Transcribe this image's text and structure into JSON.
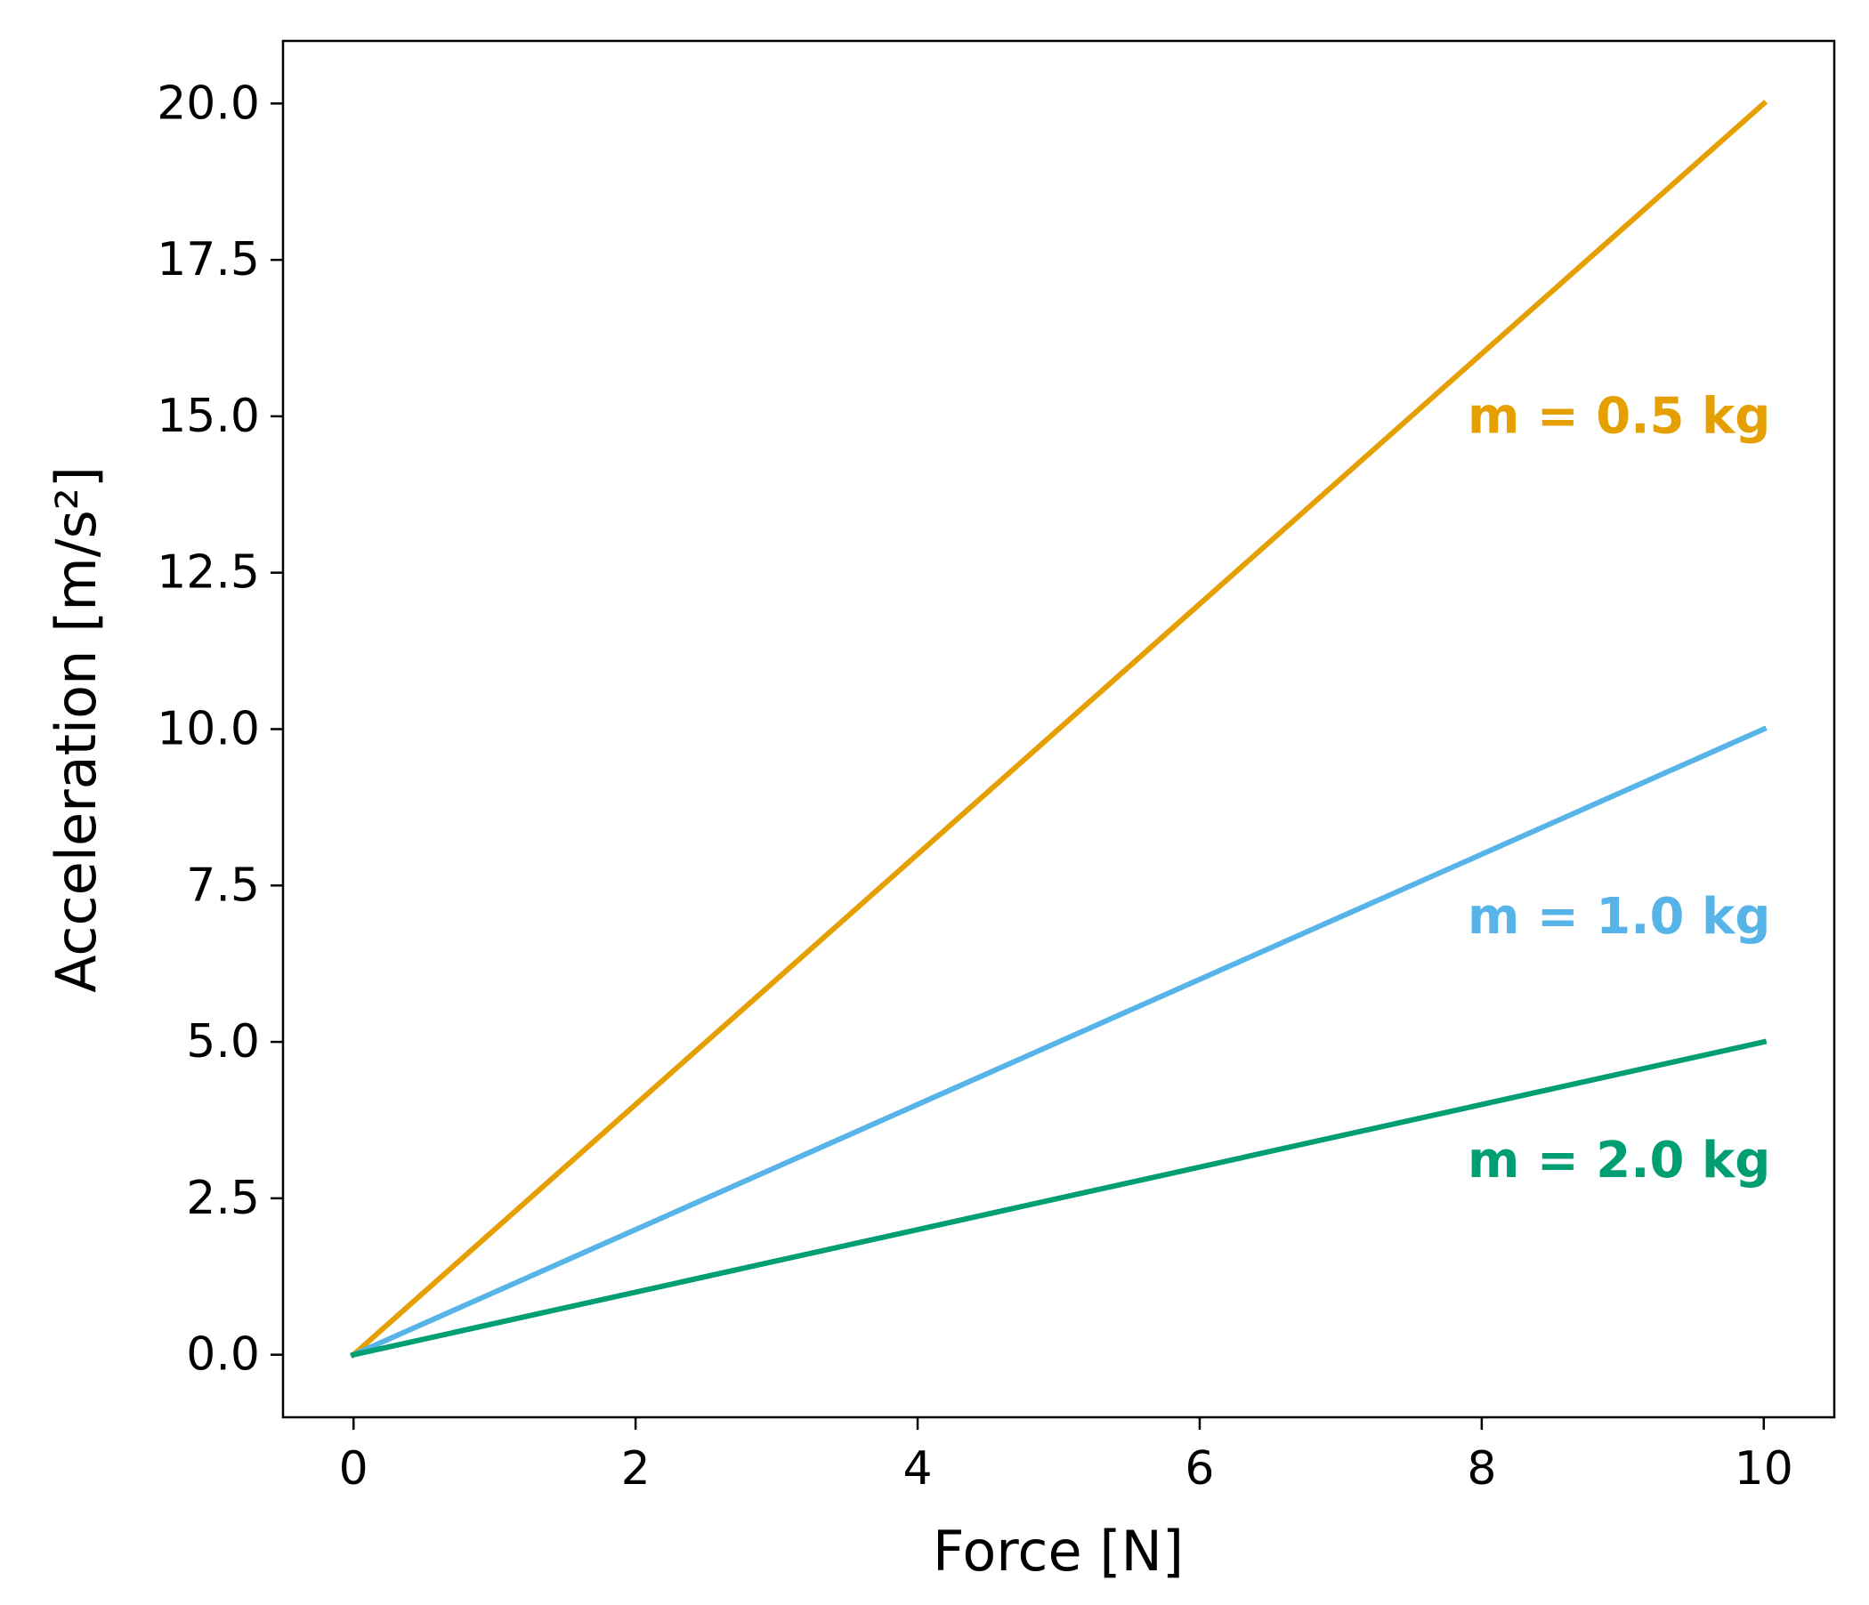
{
  "chart_data": {
    "type": "line",
    "title": "",
    "xlabel": "Force [N]",
    "ylabel": "Acceleration [m/s²]",
    "xlim": [
      -0.5,
      10.5
    ],
    "ylim": [
      -1.0,
      21.0
    ],
    "xticks": [
      0,
      2,
      4,
      6,
      8,
      10
    ],
    "xtick_labels": [
      "0",
      "2",
      "4",
      "6",
      "8",
      "10"
    ],
    "yticks": [
      0.0,
      2.5,
      5.0,
      7.5,
      10.0,
      12.5,
      15.0,
      17.5,
      20.0
    ],
    "ytick_labels": [
      "0.0",
      "2.5",
      "5.0",
      "7.5",
      "10.0",
      "12.5",
      "15.0",
      "17.5",
      "20.0"
    ],
    "grid": false,
    "legend": "none",
    "series": [
      {
        "name": "m = 0.5 kg",
        "color": "#E69F00",
        "x": [
          0,
          10
        ],
        "y": [
          0,
          20
        ],
        "label_at": [
          7.9,
          15.0
        ]
      },
      {
        "name": "m = 1.0 kg",
        "color": "#56B4E9",
        "x": [
          0,
          10
        ],
        "y": [
          0,
          10
        ],
        "label_at": [
          7.9,
          7.0
        ]
      },
      {
        "name": "m = 2.0 kg",
        "color": "#009E73",
        "x": [
          0,
          10
        ],
        "y": [
          0,
          5
        ],
        "label_at": [
          7.9,
          3.1
        ]
      }
    ]
  }
}
